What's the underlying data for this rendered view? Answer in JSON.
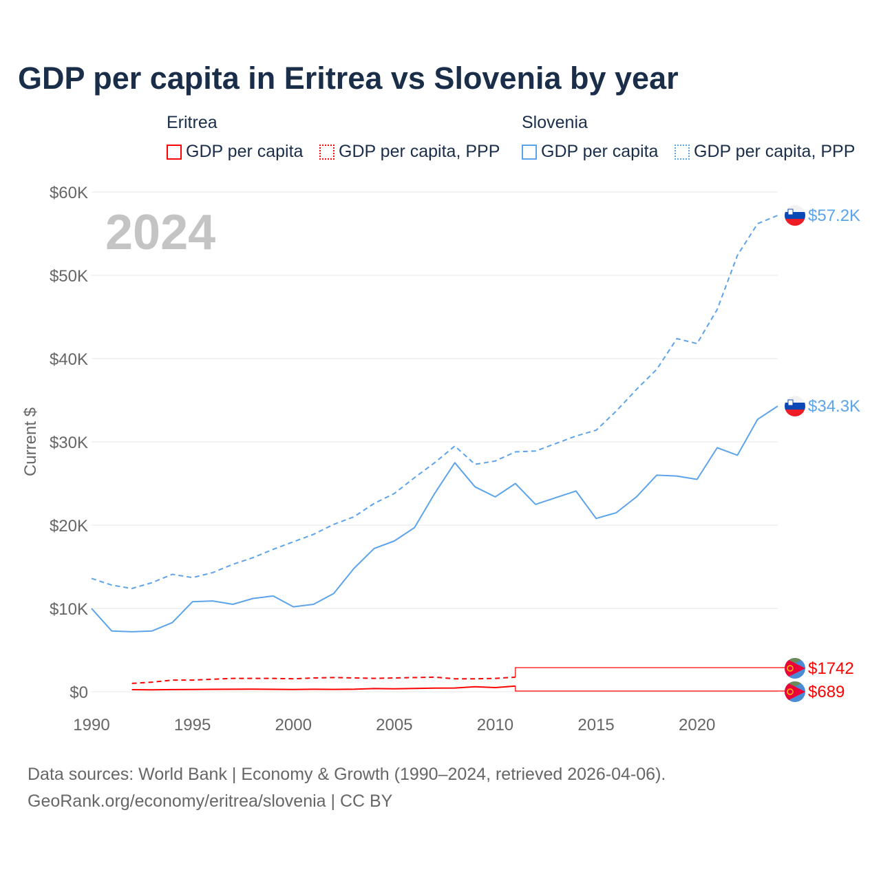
{
  "chart_data": {
    "type": "line",
    "title": "GDP per capita in Eritrea vs Slovenia by year",
    "ylabel": "Current $",
    "xlabel": "",
    "xlim": [
      1990,
      2024
    ],
    "ylim": [
      0,
      60000
    ],
    "x_ticks": [
      "1990",
      "1995",
      "2000",
      "2005",
      "2010",
      "2015",
      "2020"
    ],
    "y_ticks": [
      "$0",
      "$10K",
      "$20K",
      "$30K",
      "$40K",
      "$50K",
      "$60K"
    ],
    "year_watermark": "2024",
    "legend": {
      "groups": [
        {
          "name": "Eritrea",
          "items": [
            "GDP per capita",
            "GDP per capita, PPP"
          ]
        },
        {
          "name": "Slovenia",
          "items": [
            "GDP per capita",
            "GDP per capita, PPP"
          ]
        }
      ]
    },
    "colors": {
      "Eritrea": "#ff0000",
      "Slovenia": "#5ba3ea"
    },
    "series": [
      {
        "name": "Slovenia GDP per capita",
        "country": "Slovenia",
        "style": "solid",
        "start": 1990,
        "values": [
          10000,
          7300,
          7200,
          7300,
          8300,
          10800,
          10900,
          10500,
          11200,
          11500,
          10200,
          10500,
          11800,
          14800,
          17200,
          18100,
          19700,
          23800,
          27500,
          24600,
          23400,
          25000,
          22500,
          23300,
          24100,
          20800,
          21500,
          23400,
          26000,
          25900,
          25500,
          29300,
          28400,
          32700,
          34300
        ],
        "end_label": "$34.3K"
      },
      {
        "name": "Slovenia GDP per capita, PPP",
        "country": "Slovenia",
        "style": "dashed",
        "start": 1990,
        "values": [
          13600,
          12800,
          12400,
          13100,
          14100,
          13700,
          14300,
          15300,
          16100,
          17100,
          18000,
          18900,
          20100,
          21000,
          22600,
          23800,
          25700,
          27500,
          29500,
          27300,
          27700,
          28800,
          28900,
          29800,
          30700,
          31400,
          33700,
          36300,
          38700,
          42400,
          41800,
          45900,
          52400,
          56200,
          57200
        ],
        "end_label": "$57.2K"
      },
      {
        "name": "Eritrea GDP per capita",
        "country": "Eritrea",
        "style": "solid",
        "start": 1992,
        "values": [
          250,
          230,
          260,
          270,
          290,
          300,
          310,
          290,
          270,
          300,
          280,
          300,
          380,
          350,
          400,
          430,
          450,
          600,
          500,
          689
        ],
        "end_label": "$689"
      },
      {
        "name": "Eritrea GDP per capita, PPP",
        "country": "Eritrea",
        "style": "dashed",
        "start": 1992,
        "values": [
          1000,
          1150,
          1400,
          1400,
          1500,
          1600,
          1600,
          1600,
          1550,
          1650,
          1700,
          1650,
          1600,
          1650,
          1700,
          1750,
          1550,
          1550,
          1600,
          1742
        ],
        "end_label": "$1742"
      }
    ]
  },
  "footer": {
    "line1": "Data sources: World Bank | Economy & Growth (1990–2024, retrieved 2026-04-06).",
    "line2": "GeoRank.org/economy/eritrea/slovenia | CC BY"
  }
}
